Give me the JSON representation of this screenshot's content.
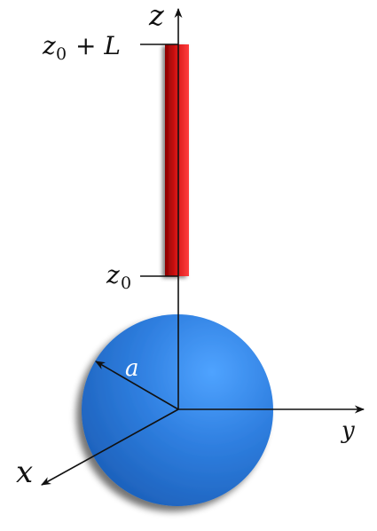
{
  "labels": {
    "z_axis": "z",
    "y_axis": "y",
    "x_axis": "x",
    "radius": "a",
    "z0_var": "z",
    "z0_sub": "0",
    "zL_plus_L": "+ L"
  },
  "colors": {
    "sphere_light": "#4fa3ff",
    "sphere_mid": "#2f7fe0",
    "sphere_dark": "#1c5fb8",
    "rod_light": "#ff3a3a",
    "rod_dark": "#8b0000",
    "axis": "#111111",
    "radius_label": "#ffffff"
  }
}
